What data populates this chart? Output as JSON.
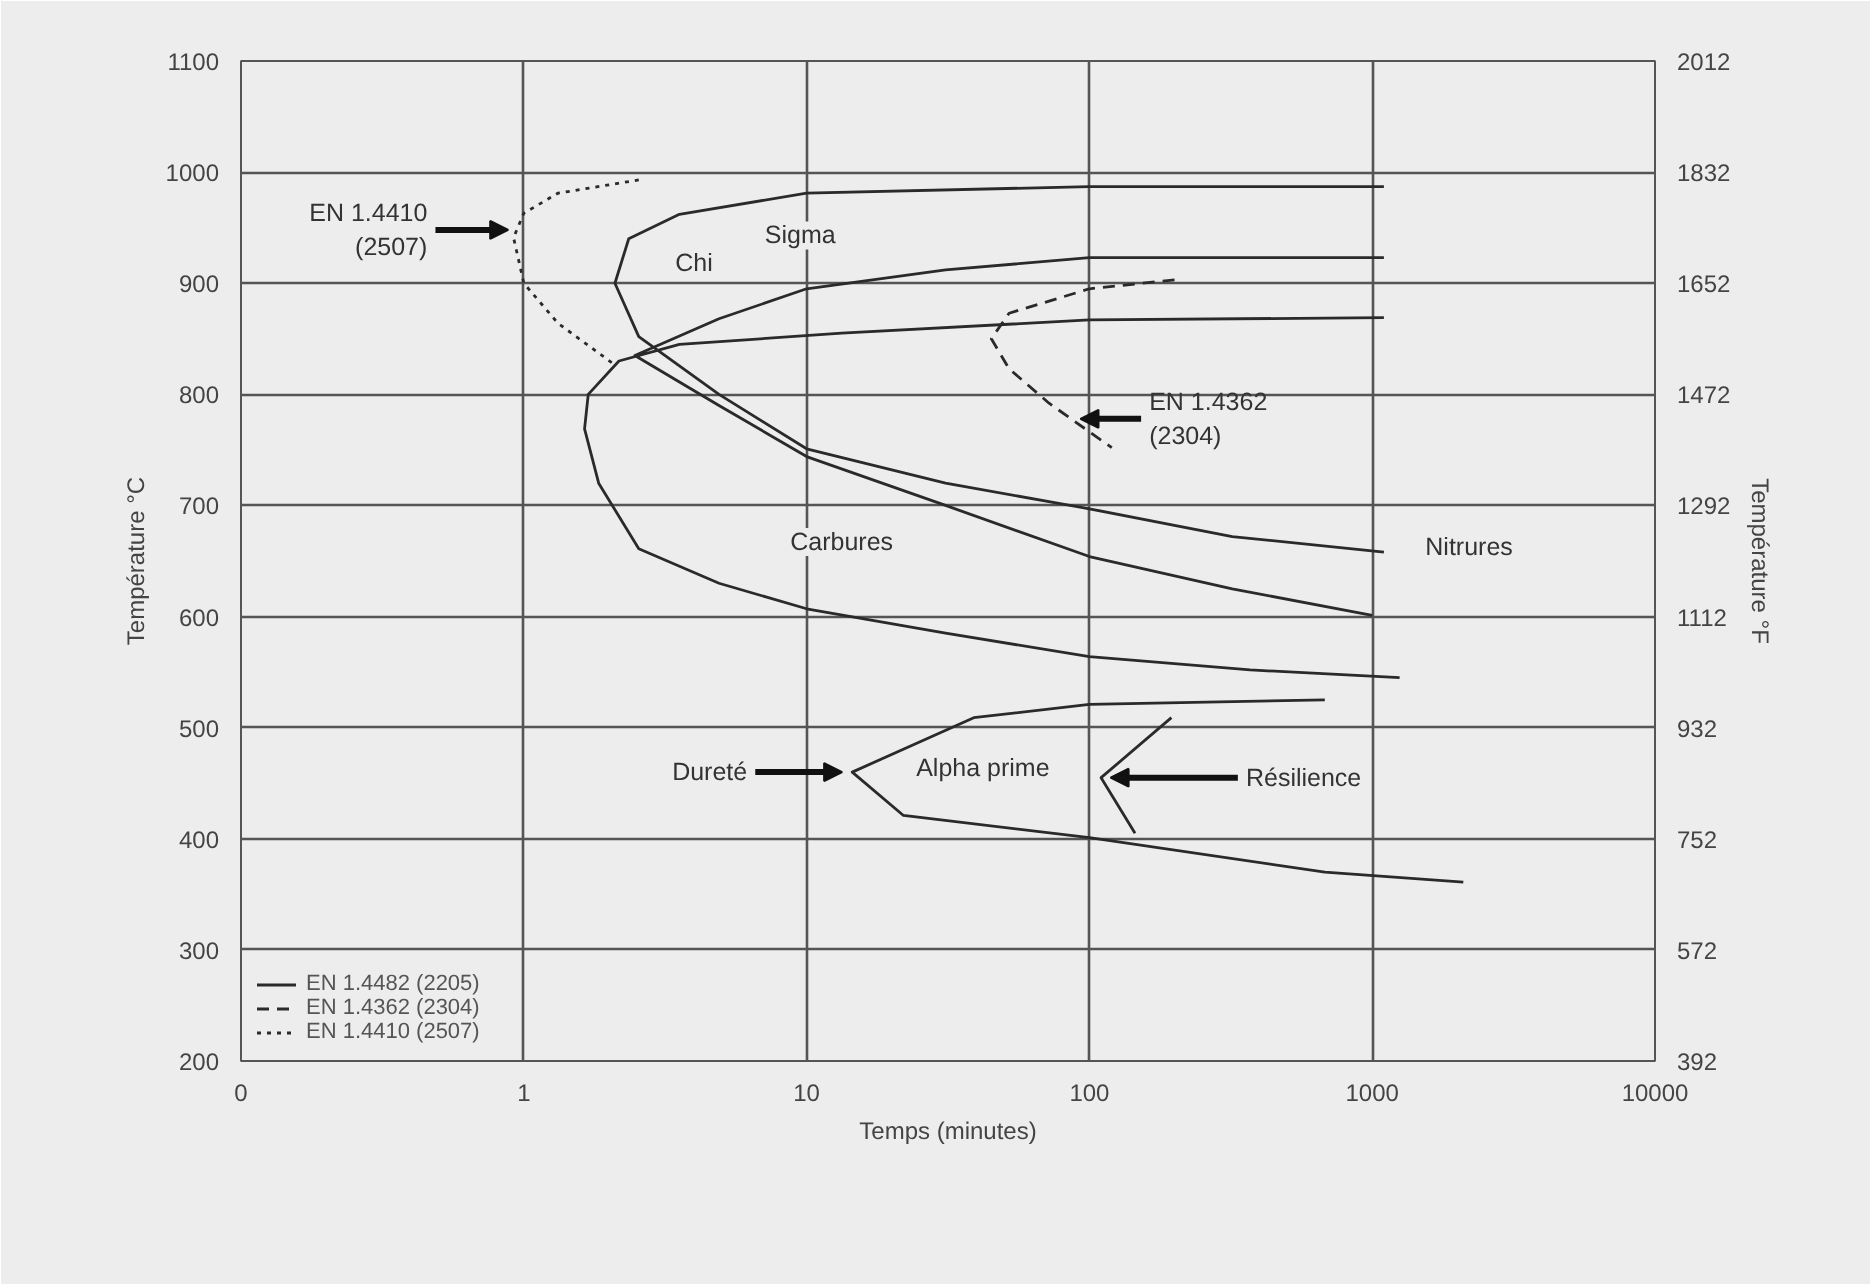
{
  "chart_data": {
    "type": "line",
    "xlabel": "Temps (minutes)",
    "ylabel": "Température °C",
    "y2label": "Température °F",
    "xlim": [
      0.1,
      10000
    ],
    "xticks": [
      {
        "value": 0.1,
        "label": "0"
      },
      1,
      10,
      100,
      1000,
      10000
    ],
    "ylim": [
      200,
      1100
    ],
    "yticks": [
      200,
      300,
      400,
      500,
      600,
      700,
      800,
      900,
      1000,
      1100
    ],
    "y2lim": [
      392,
      2012
    ],
    "y2ticks": [
      392,
      572,
      752,
      932,
      1112,
      1292,
      1472,
      1652,
      1832,
      2012
    ],
    "log": "x",
    "grid": true,
    "legend": "bottom left",
    "series": [
      {
        "name": "EN 1.4482 (2205)",
        "color": "#2a2a2a",
        "line_style": "solid",
        "x": [
          1100,
          100,
          10,
          3.55,
          2.35,
          2.1,
          2.55,
          4.9,
          10,
          31,
          100,
          320,
          1100,
          null,
          1100,
          100,
          31,
          10,
          4.9,
          2.47,
          4.9,
          10,
          31,
          100,
          320,
          1000,
          null,
          1100,
          100,
          13.3,
          3.55,
          2.17,
          1.69,
          1.64,
          1.84,
          2.55,
          4.9,
          10,
          31,
          100,
          370,
          1250,
          null,
          680,
          100,
          39,
          14.5,
          22,
          100,
          680,
          2100,
          null,
          195,
          110,
          145
        ],
        "values": [
          987,
          987,
          981,
          962,
          940,
          900,
          852,
          800,
          751,
          720,
          697,
          672,
          658,
          null,
          923,
          923,
          912,
          895,
          868,
          835,
          790,
          744,
          700,
          654,
          625,
          601,
          null,
          869,
          867,
          855,
          845,
          830,
          800,
          769,
          720,
          661,
          630,
          607,
          585,
          564,
          552,
          545,
          null,
          525,
          521,
          509,
          460,
          421,
          401,
          370,
          361,
          null,
          509,
          455,
          405
        ]
      },
      {
        "name": "EN 1.4362 (2304)",
        "color": "#2a2a2a",
        "line_style": "dashed",
        "x": [
          200,
          100,
          52,
          45,
          52,
          72,
          120
        ],
        "values": [
          903,
          895,
          873,
          850,
          823,
          792,
          752
        ]
      },
      {
        "name": "EN 1.4410 (2507)",
        "color": "#2a2a2a",
        "line_style": "dotted",
        "x": [
          2.55,
          1.32,
          1,
          0.92,
          1,
          1.32,
          2.06
        ],
        "values": [
          993,
          981,
          963,
          941,
          900,
          864,
          828
        ]
      }
    ],
    "annotations": [
      "Chi",
      "Sigma",
      "Carbures",
      "Nitrures",
      "Alpha prime",
      {
        "text": "EN 1.4410 (2507)",
        "x": 0.91,
        "y": 948
      },
      {
        "text": "EN 1.4362 (2304)",
        "x": 90,
        "y": 778
      },
      {
        "text": "Dureté",
        "x": 13.8,
        "y": 460
      },
      {
        "text": "Résilience",
        "x": 115,
        "y": 455
      }
    ]
  }
}
